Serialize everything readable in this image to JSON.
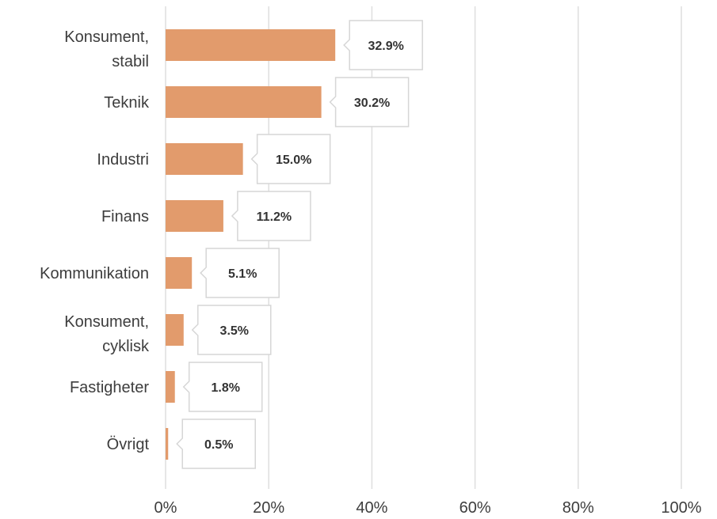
{
  "chart_data": {
    "type": "bar",
    "orientation": "horizontal",
    "categories": [
      [
        "Konsument,",
        "stabil"
      ],
      [
        "Teknik"
      ],
      [
        "Industri"
      ],
      [
        "Finans"
      ],
      [
        "Kommunikation"
      ],
      [
        "Konsument,",
        "cyklisk"
      ],
      [
        "Fastigheter"
      ],
      [
        "Övrigt"
      ]
    ],
    "values": [
      32.9,
      30.2,
      15.0,
      11.2,
      5.1,
      3.5,
      1.8,
      0.5
    ],
    "value_labels": [
      "32.9%",
      "30.2%",
      "15.0%",
      "11.2%",
      "5.1%",
      "3.5%",
      "1.8%",
      "0.5%"
    ],
    "x_ticks": [
      "0%",
      "20%",
      "40%",
      "60%",
      "80%",
      "100%"
    ],
    "x_tick_values": [
      0,
      20,
      40,
      60,
      80,
      100
    ],
    "xlim": [
      0,
      100
    ],
    "grid": "vertical",
    "legend": "none",
    "bar_color": "#e29b6c",
    "grid_color": "#dedede",
    "callout_border_color": "#d6d6d6"
  }
}
